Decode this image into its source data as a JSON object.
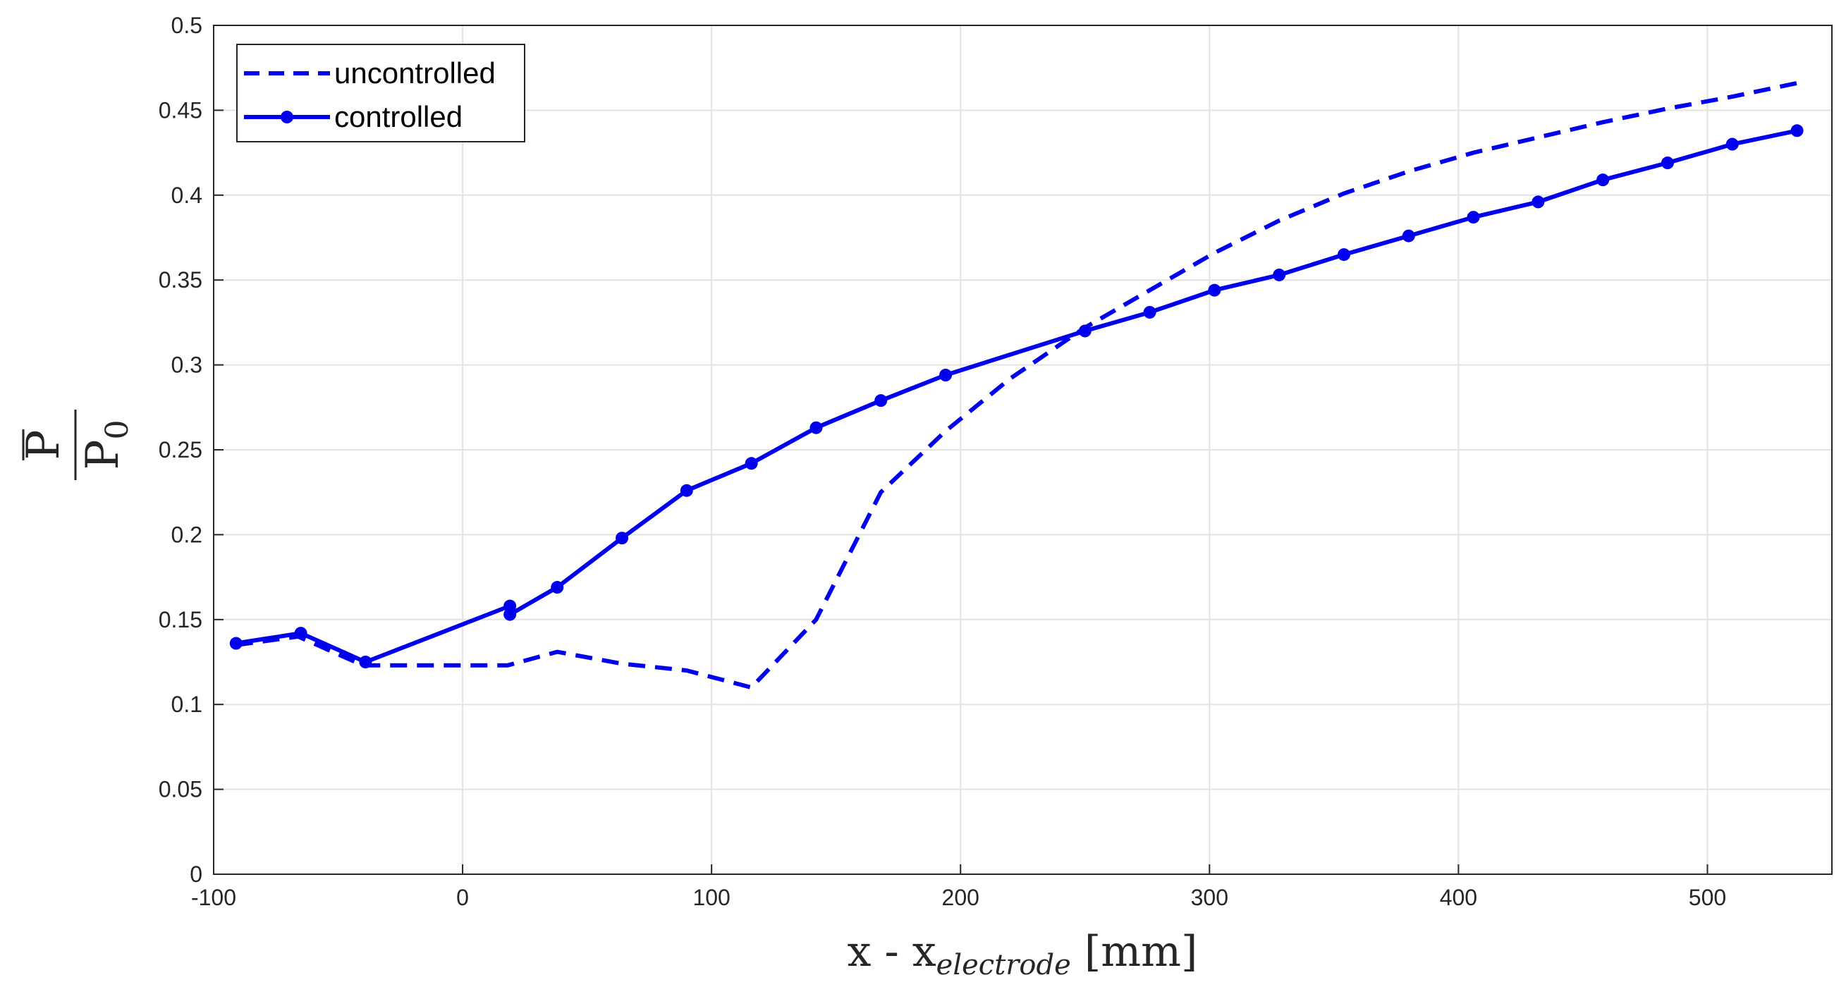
{
  "chart_data": {
    "type": "line",
    "xlabel": {
      "main": "x - x",
      "subscript": "electrode",
      "unit": " [mm]"
    },
    "ylabel": {
      "numerator": "P",
      "denominator": "P",
      "denominator_sub": "0"
    },
    "xlim": [
      -100,
      550
    ],
    "ylim": [
      0,
      0.5
    ],
    "xticks": [
      -100,
      0,
      100,
      200,
      300,
      400,
      500
    ],
    "xtick_labels": [
      "-100",
      "0",
      "100",
      "200",
      "300",
      "400",
      "500"
    ],
    "yticks": [
      0,
      0.05,
      0.1,
      0.15,
      0.2,
      0.25,
      0.3,
      0.35,
      0.4,
      0.45,
      0.5
    ],
    "ytick_labels": [
      "0",
      "0.05",
      "0.1",
      "0.15",
      "0.2",
      "0.25",
      "0.3",
      "0.35",
      "0.4",
      "0.45",
      "0.5"
    ],
    "grid": true,
    "legend_position": "top-left",
    "series": [
      {
        "name": "uncontrolled",
        "style": "dashed",
        "markers": false,
        "color": "#0000ee",
        "x": [
          -91,
          -66,
          -40,
          18,
          38,
          64,
          90,
          116,
          142,
          168,
          194,
          220,
          250,
          276,
          302,
          328,
          354,
          380,
          406,
          432,
          458,
          484,
          510,
          536
        ],
        "y": [
          0.135,
          0.14,
          0.123,
          0.123,
          0.131,
          0.124,
          0.12,
          0.11,
          0.15,
          0.225,
          0.261,
          0.292,
          0.322,
          0.344,
          0.366,
          0.385,
          0.401,
          0.414,
          0.425,
          0.434,
          0.443,
          0.451,
          0.458,
          0.466
        ]
      },
      {
        "name": "controlled",
        "style": "solid",
        "markers": true,
        "color": "#0000ee",
        "x": [
          -91,
          -65,
          -39,
          19,
          19,
          38,
          64,
          90,
          116,
          142,
          168,
          194,
          250,
          276,
          302,
          328,
          354,
          380,
          406,
          432,
          458,
          484,
          510,
          536
        ],
        "y": [
          0.136,
          0.142,
          0.125,
          0.158,
          0.153,
          0.169,
          0.198,
          0.226,
          0.242,
          0.263,
          0.279,
          0.294,
          0.32,
          0.331,
          0.344,
          0.353,
          0.365,
          0.376,
          0.387,
          0.396,
          0.409,
          0.419,
          0.43,
          0.438
        ]
      }
    ]
  }
}
